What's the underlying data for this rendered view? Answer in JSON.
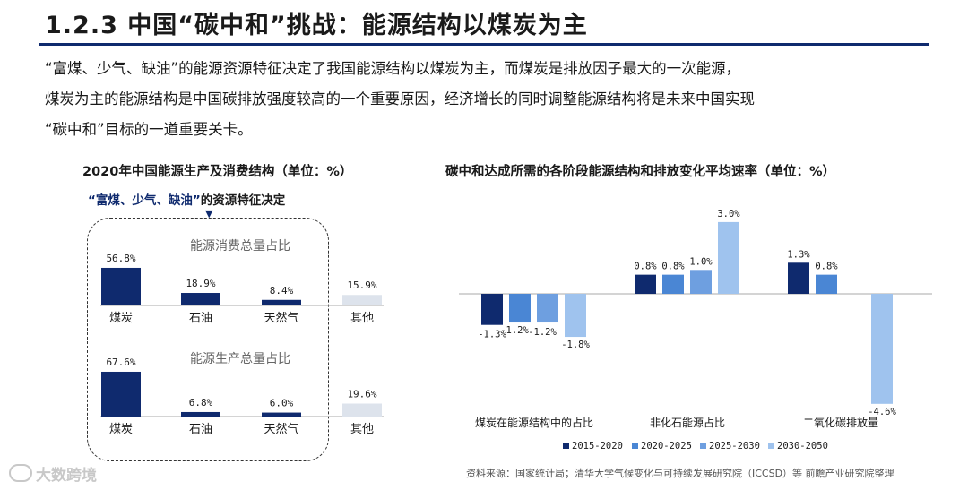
{
  "header": {
    "title": "1.2.3 中国“碳中和”挑战：能源结构以煤炭为主",
    "paragraph_lines": [
      "“富煤、少气、缺油”的能源资源特征决定了我国能源结构以煤炭为主，而煤炭是排放因子最大的一次能源，",
      "煤炭为主的能源结构是中国碳排放强度较高的一个重要原因，经济增长的同时调整能源结构将是未来中国实现",
      "“碳中和”目标的一道重要关卡。"
    ]
  },
  "left_panel": {
    "title": "2020年中国能源生产及消费结构（单位：%）",
    "note_highlight": "“富煤、少气、缺油”",
    "note_rest": "的资源特征决定"
  },
  "right_panel": {
    "title": "碳中和达成所需的各阶段能源结构和排放变化平均速率（单位：%）"
  },
  "chart_data": [
    {
      "type": "bar",
      "title": "能源消费总量占比",
      "categories": [
        "煤炭",
        "石油",
        "天然气",
        "其他"
      ],
      "values": [
        56.8,
        18.9,
        8.4,
        15.9
      ],
      "labels": [
        "56.8%",
        "18.9%",
        "8.4%",
        "15.9%"
      ],
      "colors": [
        "#0f2a6e",
        "#0f2a6e",
        "#0f2a6e",
        "#dde3ec"
      ]
    },
    {
      "type": "bar",
      "title": "能源生产总量占比",
      "categories": [
        "煤炭",
        "石油",
        "天然气",
        "其他"
      ],
      "values": [
        67.6,
        6.8,
        6.0,
        19.6
      ],
      "labels": [
        "67.6%",
        "6.8%",
        "6.0%",
        "19.6%"
      ],
      "colors": [
        "#0f2a6e",
        "#0f2a6e",
        "#0f2a6e",
        "#dde3ec"
      ]
    },
    {
      "type": "bar",
      "title": "",
      "categories": [
        "煤炭在能源结构中的占比",
        "非化石能源占比",
        "二氧化碳排放量"
      ],
      "series": [
        {
          "name": "2015-2020",
          "color": "#0f2a6e",
          "values": [
            -1.3,
            0.8,
            1.3
          ],
          "labels": [
            "-1.3%",
            "0.8%",
            "1.3%"
          ]
        },
        {
          "name": "2020-2025",
          "color": "#4a86d4",
          "values": [
            -1.2,
            0.8,
            0.8
          ],
          "labels": [
            "-1.2%",
            "0.8%",
            "0.8%"
          ]
        },
        {
          "name": "2025-2030",
          "color": "#6e9fe0",
          "values": [
            -1.2,
            1.0,
            null
          ],
          "labels": [
            "-1.2%",
            "1.0%",
            ""
          ]
        },
        {
          "name": "2030-2050",
          "color": "#9fc3ee",
          "values": [
            -1.8,
            3.0,
            -4.6
          ],
          "labels": [
            "-1.8%",
            "3.0%",
            "-4.6%"
          ]
        }
      ],
      "legend_position": "bottom"
    }
  ],
  "footer": {
    "source": "资料来源：国家统计局；清华大学气候变化与可持续发展研究院（ICCSD）等 前瞻产业研究院整理",
    "watermark": "大数跨境"
  }
}
